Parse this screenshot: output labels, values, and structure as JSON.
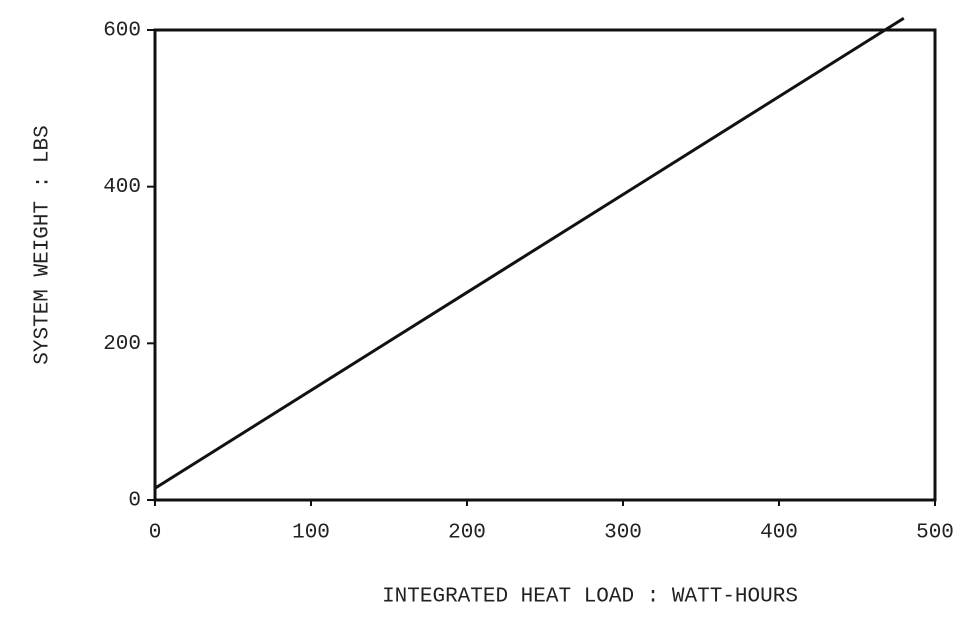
{
  "chart_data": {
    "type": "line",
    "x_label": "INTEGRATED HEAT LOAD  :  WATT-HOURS",
    "y_label": "SYSTEM WEIGHT  :  LBS",
    "x": [
      0,
      480
    ],
    "series": [
      {
        "color": "#111111",
        "values": [
          15,
          615
        ]
      }
    ],
    "xlim": [
      0,
      500
    ],
    "xticks": [
      0,
      100,
      200,
      300,
      400,
      500
    ],
    "ylim": [
      0,
      600
    ],
    "yticks": [
      0,
      200,
      400,
      600
    ],
    "grid": false
  }
}
